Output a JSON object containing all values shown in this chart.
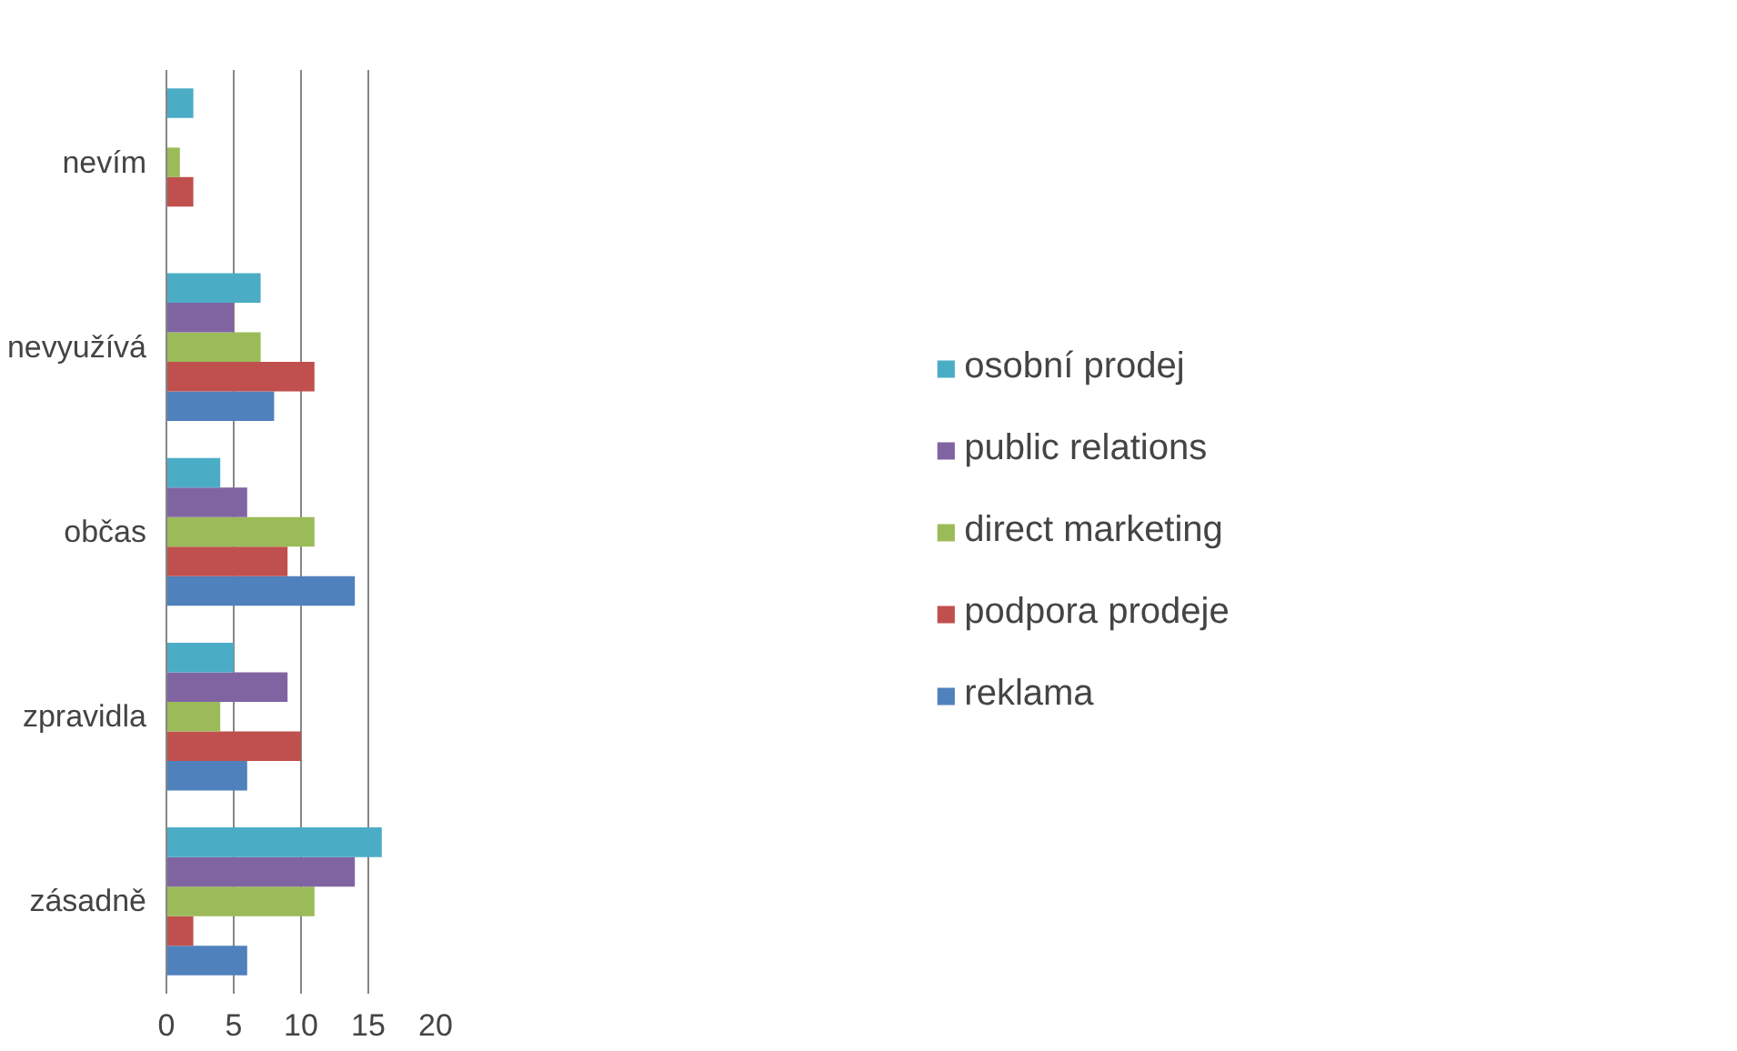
{
  "chart_data": {
    "type": "bar",
    "orientation": "horizontal",
    "categories": [
      "nevím",
      "nevyužívá",
      "občas",
      "zpravidla",
      "zásadně"
    ],
    "series": [
      {
        "name": "reklama",
        "color": "#4f81bd",
        "values": [
          0,
          8,
          14,
          6,
          6
        ]
      },
      {
        "name": "podpora prodeje",
        "color": "#c0504d",
        "values": [
          2,
          11,
          9,
          10,
          2
        ]
      },
      {
        "name": "direct marketing",
        "color": "#9bbb59",
        "values": [
          1,
          7,
          11,
          4,
          11
        ]
      },
      {
        "name": "public relations",
        "color": "#8064a2",
        "values": [
          0,
          5,
          6,
          9,
          14
        ]
      },
      {
        "name": "osobní prodej",
        "color": "#4bacc6",
        "values": [
          2,
          7,
          4,
          5,
          16
        ]
      }
    ],
    "xlim": [
      0,
      20
    ],
    "xticks": [
      0,
      5,
      10,
      15,
      20
    ],
    "grid": "x",
    "legend": "right"
  }
}
